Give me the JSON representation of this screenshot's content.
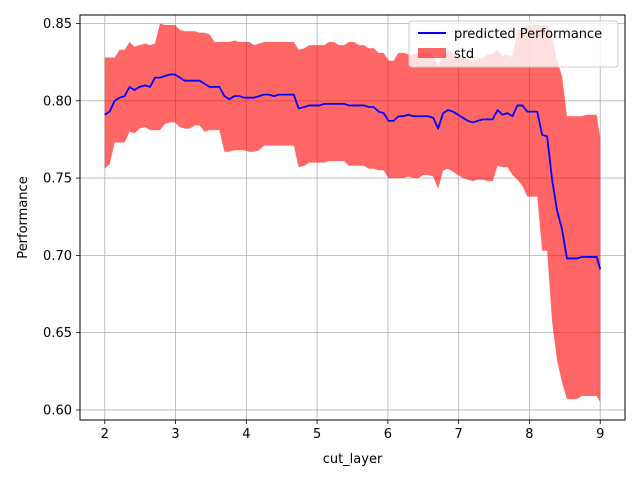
{
  "chart_data": {
    "type": "line",
    "title": "",
    "xlabel": "cut_layer",
    "ylabel": "Performance",
    "xlim": [
      1.65,
      9.35
    ],
    "ylim": [
      0.5935,
      0.8555
    ],
    "x_ticks": [
      2,
      3,
      4,
      5,
      6,
      7,
      8,
      9
    ],
    "y_ticks": [
      0.6,
      0.65,
      0.7,
      0.75,
      0.8,
      0.85
    ],
    "grid": true,
    "legend_position": "top-right",
    "colors": {
      "line": "#0000ff",
      "band": "#ff0000",
      "band_opacity": 0.6
    },
    "series": [
      {
        "name": "predicted Performance",
        "x": [
          2.0,
          2.07,
          2.14,
          2.21,
          2.28,
          2.35,
          2.42,
          2.49,
          2.57,
          2.64,
          2.71,
          2.78,
          2.85,
          2.92,
          2.99,
          3.06,
          3.13,
          3.2,
          3.27,
          3.34,
          3.41,
          3.48,
          3.55,
          3.62,
          3.69,
          3.76,
          3.83,
          3.9,
          3.97,
          4.04,
          4.11,
          4.18,
          4.25,
          4.32,
          4.39,
          4.46,
          4.53,
          4.6,
          4.67,
          4.74,
          4.82,
          4.89,
          4.96,
          5.03,
          5.1,
          5.17,
          5.24,
          5.31,
          5.38,
          5.45,
          5.52,
          5.59,
          5.66,
          5.73,
          5.8,
          5.87,
          5.94,
          6.01,
          6.08,
          6.15,
          6.22,
          6.29,
          6.36,
          6.43,
          6.5,
          6.57,
          6.64,
          6.71,
          6.78,
          6.85,
          6.92,
          6.99,
          7.06,
          7.13,
          7.2,
          7.27,
          7.34,
          7.41,
          7.48,
          7.55,
          7.62,
          7.69,
          7.76,
          7.83,
          7.9,
          7.97,
          8.04,
          8.11,
          8.18,
          8.25,
          8.32,
          8.39,
          8.46,
          8.53,
          8.6,
          8.67,
          8.74,
          8.81,
          8.88,
          8.95,
          9.0
        ],
        "values": [
          0.791,
          0.793,
          0.8,
          0.802,
          0.803,
          0.809,
          0.807,
          0.809,
          0.81,
          0.809,
          0.815,
          0.815,
          0.816,
          0.817,
          0.817,
          0.815,
          0.813,
          0.813,
          0.813,
          0.813,
          0.811,
          0.809,
          0.809,
          0.809,
          0.803,
          0.801,
          0.803,
          0.803,
          0.802,
          0.802,
          0.802,
          0.803,
          0.804,
          0.804,
          0.803,
          0.804,
          0.804,
          0.804,
          0.804,
          0.795,
          0.796,
          0.797,
          0.797,
          0.797,
          0.798,
          0.798,
          0.798,
          0.798,
          0.798,
          0.797,
          0.797,
          0.797,
          0.797,
          0.796,
          0.796,
          0.793,
          0.792,
          0.787,
          0.787,
          0.79,
          0.79,
          0.791,
          0.79,
          0.79,
          0.79,
          0.79,
          0.789,
          0.782,
          0.792,
          0.794,
          0.793,
          0.791,
          0.789,
          0.787,
          0.786,
          0.787,
          0.788,
          0.788,
          0.788,
          0.794,
          0.791,
          0.792,
          0.79,
          0.797,
          0.797,
          0.793,
          0.793,
          0.793,
          0.778,
          0.777,
          0.749,
          0.729,
          0.717,
          0.698,
          0.698,
          0.698,
          0.699,
          0.699,
          0.699,
          0.699,
          0.691
        ]
      },
      {
        "name": "std",
        "x": [
          2.0,
          2.07,
          2.14,
          2.21,
          2.28,
          2.35,
          2.42,
          2.49,
          2.57,
          2.64,
          2.71,
          2.78,
          2.85,
          2.92,
          2.99,
          3.06,
          3.13,
          3.2,
          3.27,
          3.34,
          3.41,
          3.48,
          3.55,
          3.62,
          3.69,
          3.76,
          3.83,
          3.9,
          3.97,
          4.04,
          4.11,
          4.18,
          4.25,
          4.32,
          4.39,
          4.46,
          4.53,
          4.6,
          4.67,
          4.74,
          4.82,
          4.89,
          4.96,
          5.03,
          5.1,
          5.17,
          5.24,
          5.31,
          5.38,
          5.45,
          5.52,
          5.59,
          5.66,
          5.73,
          5.8,
          5.87,
          5.94,
          6.01,
          6.08,
          6.15,
          6.22,
          6.29,
          6.36,
          6.43,
          6.5,
          6.57,
          6.64,
          6.71,
          6.78,
          6.85,
          6.92,
          6.99,
          7.06,
          7.13,
          7.2,
          7.27,
          7.34,
          7.41,
          7.48,
          7.55,
          7.62,
          7.69,
          7.76,
          7.83,
          7.9,
          7.97,
          8.04,
          8.11,
          8.18,
          8.25,
          8.32,
          8.39,
          8.46,
          8.53,
          8.6,
          8.67,
          8.74,
          8.81,
          8.88,
          8.95,
          9.0
        ],
        "upper": [
          0.828,
          0.828,
          0.828,
          0.833,
          0.833,
          0.838,
          0.835,
          0.836,
          0.837,
          0.836,
          0.837,
          0.85,
          0.849,
          0.849,
          0.849,
          0.846,
          0.845,
          0.845,
          0.845,
          0.844,
          0.844,
          0.843,
          0.838,
          0.838,
          0.838,
          0.838,
          0.839,
          0.838,
          0.838,
          0.838,
          0.836,
          0.837,
          0.838,
          0.838,
          0.838,
          0.838,
          0.838,
          0.838,
          0.838,
          0.833,
          0.834,
          0.836,
          0.836,
          0.836,
          0.836,
          0.838,
          0.838,
          0.836,
          0.836,
          0.838,
          0.838,
          0.836,
          0.836,
          0.834,
          0.834,
          0.831,
          0.831,
          0.826,
          0.826,
          0.831,
          0.831,
          0.83,
          0.83,
          0.831,
          0.831,
          0.831,
          0.83,
          0.822,
          0.83,
          0.833,
          0.831,
          0.83,
          0.829,
          0.827,
          0.825,
          0.827,
          0.828,
          0.83,
          0.83,
          0.833,
          0.829,
          0.83,
          0.828,
          0.846,
          0.846,
          0.849,
          0.849,
          0.849,
          0.849,
          0.849,
          0.841,
          0.826,
          0.816,
          0.79,
          0.79,
          0.79,
          0.79,
          0.791,
          0.791,
          0.791,
          0.776
        ],
        "lower": [
          0.756,
          0.759,
          0.773,
          0.773,
          0.773,
          0.78,
          0.779,
          0.782,
          0.783,
          0.781,
          0.781,
          0.781,
          0.785,
          0.786,
          0.786,
          0.783,
          0.782,
          0.782,
          0.784,
          0.784,
          0.78,
          0.781,
          0.781,
          0.781,
          0.767,
          0.767,
          0.768,
          0.768,
          0.768,
          0.767,
          0.767,
          0.768,
          0.771,
          0.771,
          0.771,
          0.771,
          0.771,
          0.771,
          0.771,
          0.757,
          0.758,
          0.76,
          0.76,
          0.76,
          0.76,
          0.761,
          0.761,
          0.761,
          0.761,
          0.758,
          0.758,
          0.758,
          0.758,
          0.756,
          0.756,
          0.755,
          0.755,
          0.75,
          0.75,
          0.75,
          0.75,
          0.751,
          0.75,
          0.75,
          0.752,
          0.752,
          0.751,
          0.743,
          0.755,
          0.756,
          0.754,
          0.752,
          0.75,
          0.749,
          0.748,
          0.749,
          0.749,
          0.748,
          0.748,
          0.758,
          0.757,
          0.757,
          0.752,
          0.749,
          0.745,
          0.738,
          0.738,
          0.738,
          0.703,
          0.703,
          0.657,
          0.632,
          0.618,
          0.607,
          0.607,
          0.607,
          0.609,
          0.609,
          0.609,
          0.609,
          0.605
        ]
      }
    ]
  }
}
